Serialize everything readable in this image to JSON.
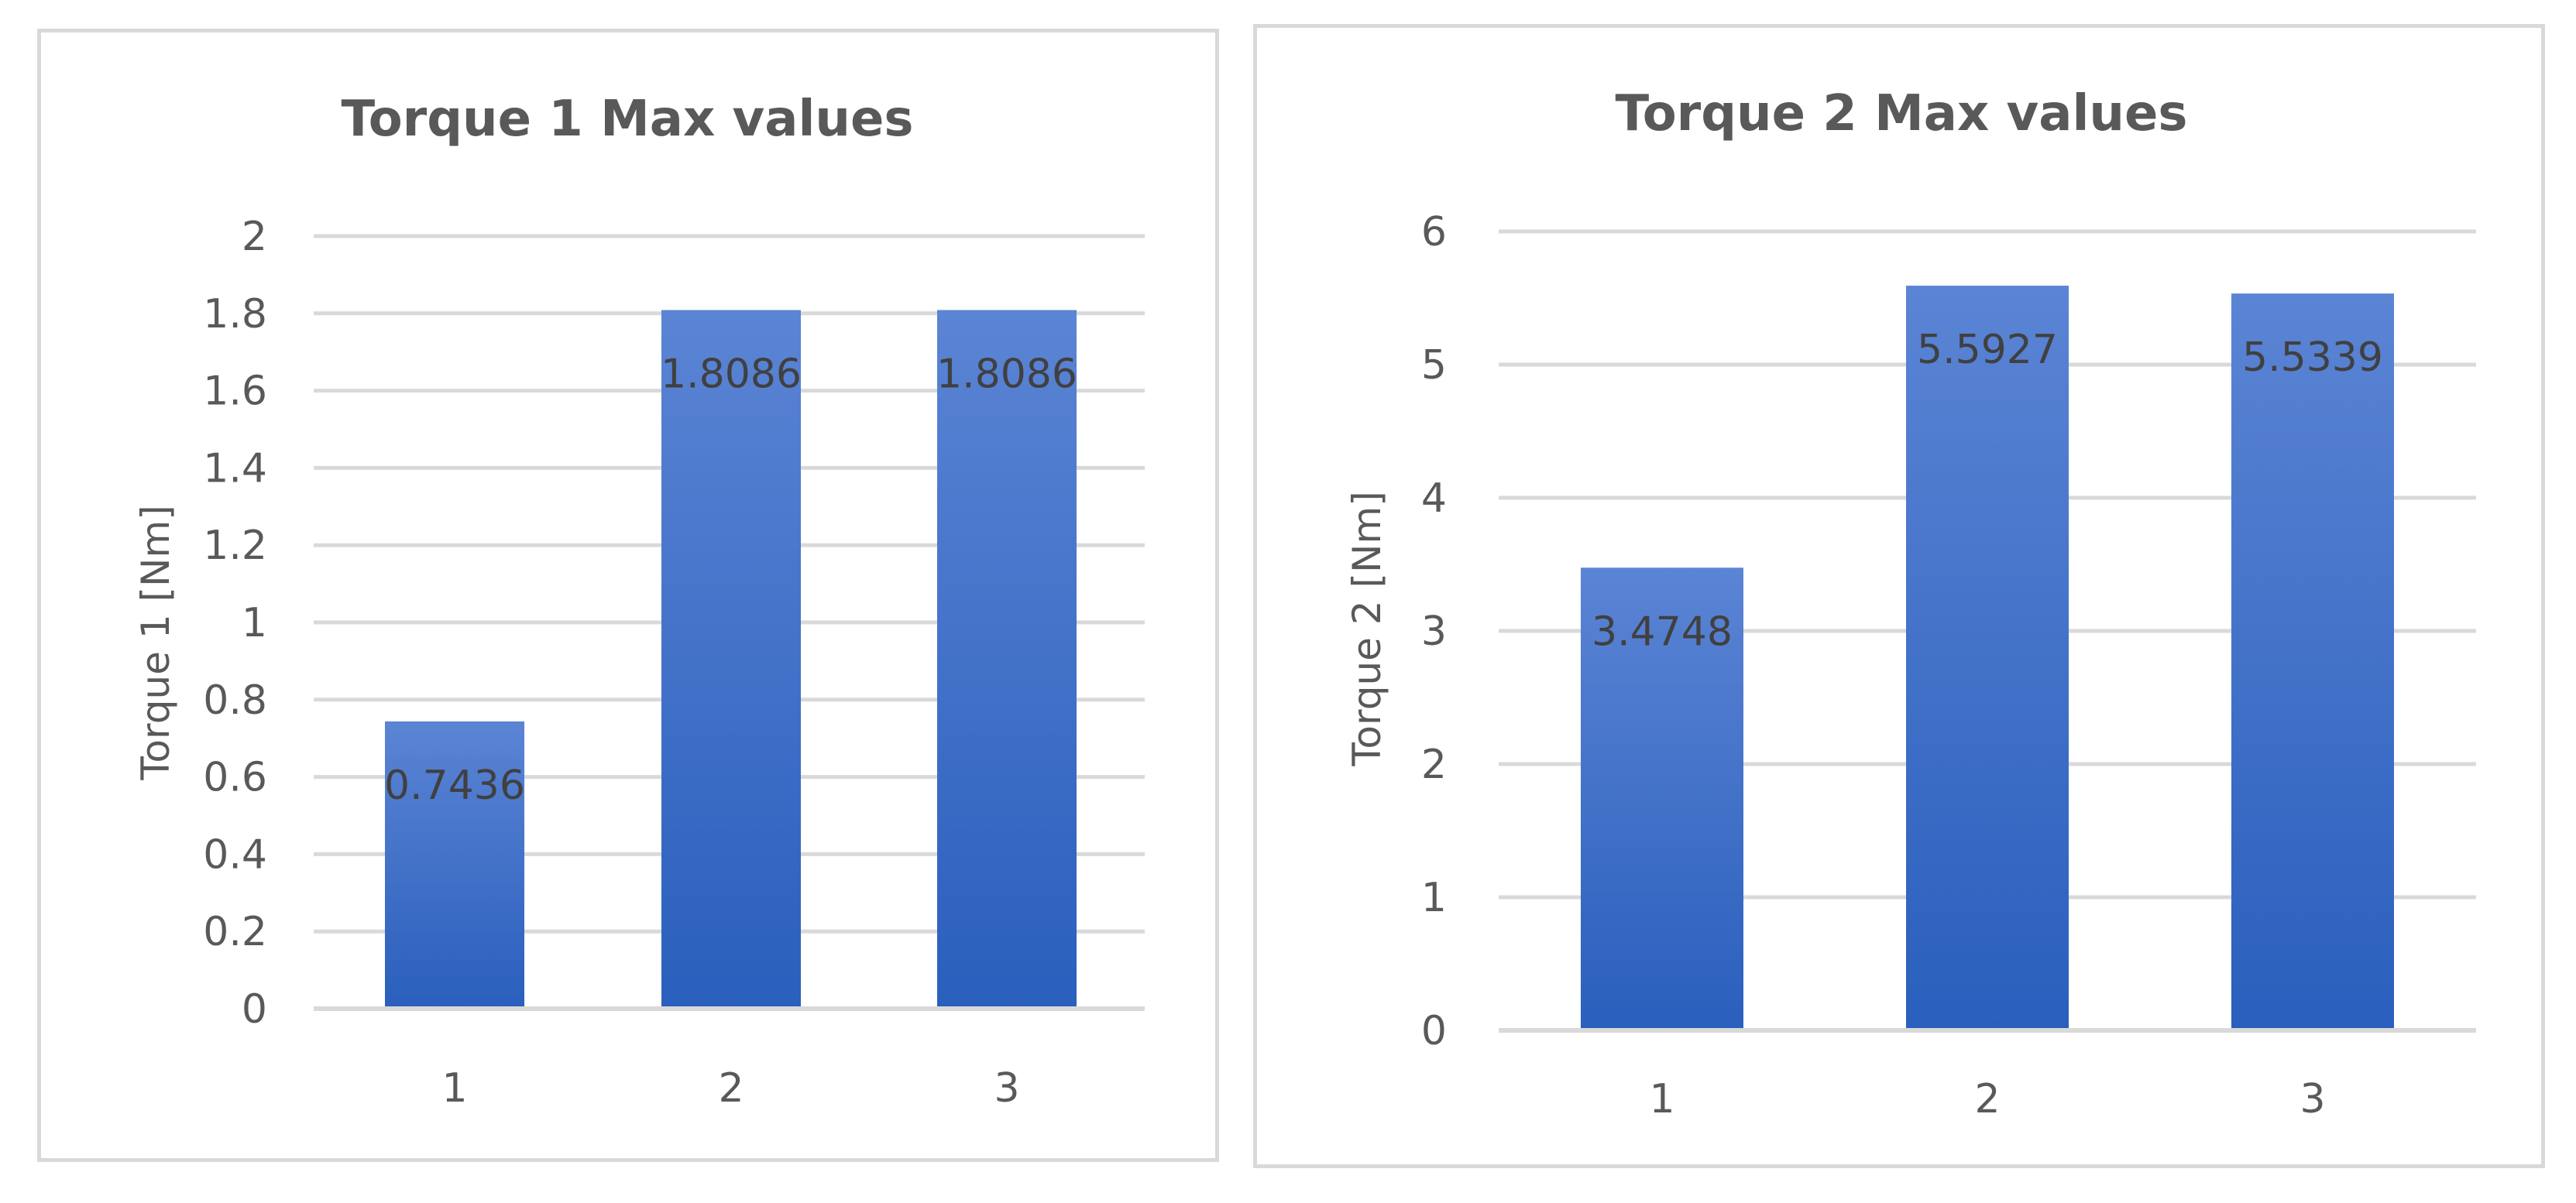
{
  "colors": {
    "bar_top": "#5b84d4",
    "bar_bottom": "#2a5fbd",
    "grid": "#d9d9d9",
    "text": "#595959",
    "label": "#404040"
  },
  "chart_data": [
    {
      "type": "bar",
      "title": "Torque 1  Max values",
      "xlabel": "",
      "ylabel": "Torque 1 [Nm]",
      "categories": [
        "1",
        "2",
        "3"
      ],
      "values": [
        0.7436,
        1.8086,
        1.8086
      ],
      "data_labels": [
        "0.7436",
        "1.8086",
        "1.8086"
      ],
      "ylim": [
        0,
        2
      ],
      "yticks": [
        "0",
        "0.2",
        "0.4",
        "0.6",
        "0.8",
        "1",
        "1.2",
        "1.4",
        "1.6",
        "1.8",
        "2"
      ],
      "grid": true,
      "legend": "none"
    },
    {
      "type": "bar",
      "title": "Torque 2  Max values",
      "xlabel": "",
      "ylabel": "Torque 2 [Nm]",
      "categories": [
        "1",
        "2",
        "3"
      ],
      "values": [
        3.4748,
        5.5927,
        5.5339
      ],
      "data_labels": [
        "3.4748",
        "5.5927",
        "5.5339"
      ],
      "ylim": [
        0,
        6
      ],
      "yticks": [
        "0",
        "1",
        "2",
        "3",
        "4",
        "5",
        "6"
      ],
      "grid": true,
      "legend": "none"
    }
  ]
}
